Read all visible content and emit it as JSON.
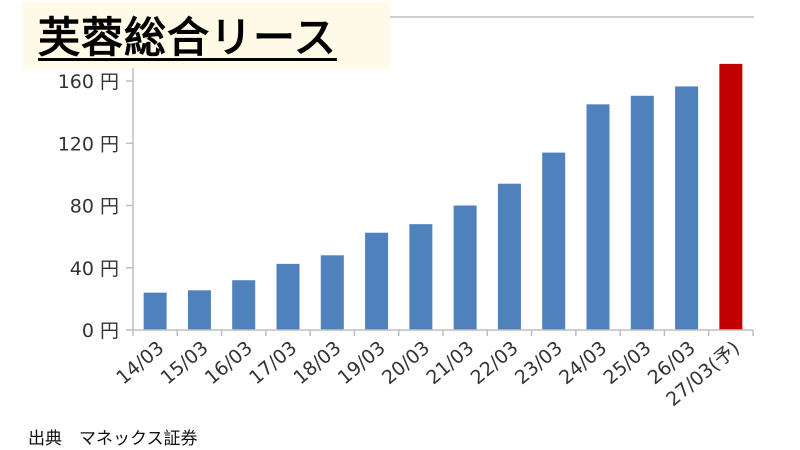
{
  "title": "芙蓉総合リース",
  "source": "出典　マネックス証券",
  "colors": {
    "actual": "#4f81bd",
    "forecast": "#c00000"
  },
  "chart_data": {
    "type": "bar",
    "title": "芙蓉総合リース",
    "categories": [
      "14/03",
      "15/03",
      "16/03",
      "17/03",
      "18/03",
      "19/03",
      "20/03",
      "21/03",
      "22/03",
      "23/03",
      "24/03",
      "25/03",
      "26/03",
      "27/03(予)"
    ],
    "values": [
      24,
      25.5,
      32,
      42.5,
      48,
      62.5,
      68,
      80,
      94,
      114,
      145,
      150.5,
      156.5,
      171
    ],
    "forecast_index": 13,
    "ylim": [
      0,
      175
    ],
    "yticks": [
      0,
      40,
      80,
      120,
      160
    ],
    "ytick_labels": [
      "0 円",
      "40 円",
      "80 円",
      "120 円",
      "160 円"
    ],
    "xlabel": "",
    "ylabel": "",
    "grid": false
  }
}
